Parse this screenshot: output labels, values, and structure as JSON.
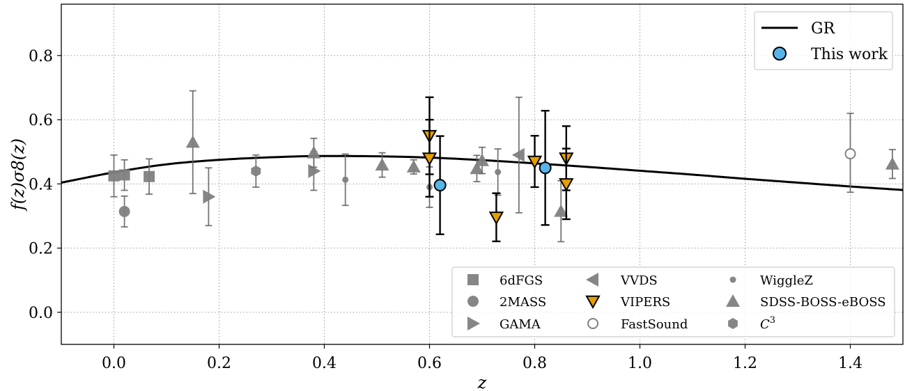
{
  "chart_data": {
    "type": "scatter",
    "xlabel": "z",
    "ylabel": "f(z)σ8(z)",
    "xlim": [
      -0.1,
      1.5
    ],
    "ylim": [
      -0.1,
      0.96
    ],
    "xticks": [
      0.0,
      0.2,
      0.4,
      0.6,
      0.8,
      1.0,
      1.2,
      1.4
    ],
    "xtick_labels": [
      "0.0",
      "0.2",
      "0.4",
      "0.6",
      "0.8",
      "1.0",
      "1.2",
      "1.4"
    ],
    "yticks": [
      0.0,
      0.2,
      0.4,
      0.6,
      0.8
    ],
    "ytick_labels": [
      "0.0",
      "0.2",
      "0.4",
      "0.6",
      "0.8"
    ],
    "grid": true,
    "colors": {
      "gr_line": "#000000",
      "this_work": "#56b4e9",
      "vipers": "#e69f00",
      "survey": "#808080"
    },
    "gr_curve": {
      "name": "GR",
      "x": [
        -0.1,
        0.0,
        0.1,
        0.2,
        0.3,
        0.4,
        0.5,
        0.6,
        0.7,
        0.8,
        0.9,
        1.0,
        1.1,
        1.2,
        1.3,
        1.4,
        1.5
      ],
      "y": [
        0.404,
        0.436,
        0.461,
        0.475,
        0.483,
        0.487,
        0.486,
        0.482,
        0.474,
        0.464,
        0.453,
        0.441,
        0.429,
        0.416,
        0.404,
        0.392,
        0.381
      ]
    },
    "series": [
      {
        "name": "This work",
        "marker": "circle",
        "points": [
          {
            "x": 0.62,
            "y": 0.396,
            "lo": 0.243,
            "hi": 0.549
          },
          {
            "x": 0.82,
            "y": 0.45,
            "lo": 0.272,
            "hi": 0.628
          }
        ]
      },
      {
        "name": "6dFGS",
        "marker": "square",
        "points": [
          {
            "x": 0.0,
            "y": 0.425,
            "lo": 0.36,
            "hi": 0.49
          },
          {
            "x": 0.02,
            "y": 0.428,
            "lo": 0.38,
            "hi": 0.475
          },
          {
            "x": 0.067,
            "y": 0.423,
            "lo": 0.368,
            "hi": 0.478
          }
        ]
      },
      {
        "name": "2MASS",
        "marker": "circle",
        "points": [
          {
            "x": 0.02,
            "y": 0.314,
            "lo": 0.266,
            "hi": 0.362
          }
        ]
      },
      {
        "name": "GAMA",
        "marker": "triangle-right",
        "points": [
          {
            "x": 0.18,
            "y": 0.36,
            "lo": 0.27,
            "hi": 0.45
          },
          {
            "x": 0.38,
            "y": 0.44,
            "lo": 0.38,
            "hi": 0.5
          }
        ]
      },
      {
        "name": "VVDS",
        "marker": "triangle-left",
        "points": [
          {
            "x": 0.77,
            "y": 0.49,
            "lo": 0.31,
            "hi": 0.67
          }
        ]
      },
      {
        "name": "VIPERS",
        "marker": "triangle-down",
        "points": [
          {
            "x": 0.6,
            "y": 0.55,
            "lo": 0.43,
            "hi": 0.67
          },
          {
            "x": 0.6,
            "y": 0.48,
            "lo": 0.36,
            "hi": 0.6
          },
          {
            "x": 0.727,
            "y": 0.296,
            "lo": 0.221,
            "hi": 0.371
          },
          {
            "x": 0.8,
            "y": 0.47,
            "lo": 0.39,
            "hi": 0.55
          },
          {
            "x": 0.86,
            "y": 0.48,
            "lo": 0.38,
            "hi": 0.58
          },
          {
            "x": 0.86,
            "y": 0.4,
            "lo": 0.29,
            "hi": 0.51
          }
        ]
      },
      {
        "name": "FastSound",
        "marker": "circle-open",
        "points": [
          {
            "x": 1.4,
            "y": 0.494,
            "lo": 0.374,
            "hi": 0.62
          }
        ]
      },
      {
        "name": "WiggleZ",
        "marker": "dot",
        "points": [
          {
            "x": 0.44,
            "y": 0.413,
            "lo": 0.333,
            "hi": 0.493
          },
          {
            "x": 0.6,
            "y": 0.39,
            "lo": 0.327,
            "hi": 0.453
          },
          {
            "x": 0.73,
            "y": 0.437,
            "lo": 0.365,
            "hi": 0.509
          }
        ]
      },
      {
        "name": "SDSS-BOSS-eBOSS",
        "marker": "triangle-up",
        "points": [
          {
            "x": 0.15,
            "y": 0.53,
            "lo": 0.37,
            "hi": 0.69
          },
          {
            "x": 0.38,
            "y": 0.497,
            "lo": 0.452,
            "hi": 0.542
          },
          {
            "x": 0.51,
            "y": 0.459,
            "lo": 0.421,
            "hi": 0.497
          },
          {
            "x": 0.57,
            "y": 0.453,
            "lo": 0.431,
            "hi": 0.475
          },
          {
            "x": 0.69,
            "y": 0.448,
            "lo": 0.407,
            "hi": 0.489
          },
          {
            "x": 0.7,
            "y": 0.473,
            "lo": 0.432,
            "hi": 0.514
          },
          {
            "x": 0.85,
            "y": 0.315,
            "lo": 0.22,
            "hi": 0.41
          },
          {
            "x": 1.48,
            "y": 0.462,
            "lo": 0.417,
            "hi": 0.507
          }
        ]
      },
      {
        "name": "C^3",
        "marker": "hexagon",
        "points": [
          {
            "x": 0.27,
            "y": 0.44,
            "lo": 0.39,
            "hi": 0.49
          }
        ]
      }
    ],
    "legend_main": {
      "placement": "top-right",
      "entries": [
        "GR",
        "This work"
      ]
    },
    "legend_surveys": {
      "placement": "lower-right",
      "columns": [
        [
          "6dFGS",
          "2MASS",
          "GAMA"
        ],
        [
          "VVDS",
          "VIPERS",
          "FastSound"
        ],
        [
          "WiggleZ",
          "SDSS-BOSS-eBOSS",
          "C"
        ]
      ],
      "c3_superscript": "3"
    }
  }
}
